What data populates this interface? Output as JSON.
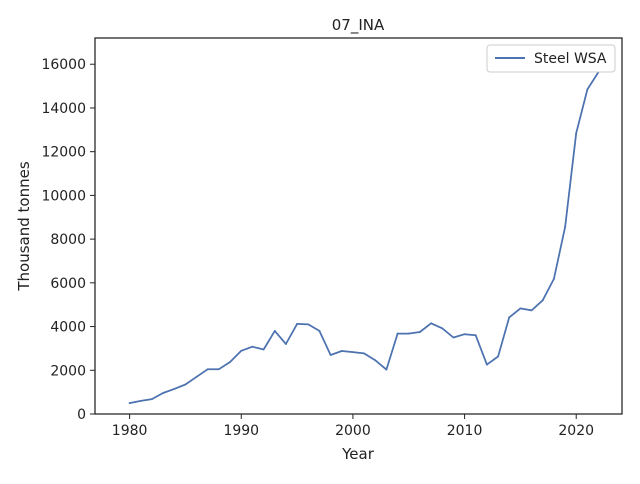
{
  "chart_data": {
    "type": "line",
    "title": "07_INA",
    "xlabel": "Year",
    "ylabel": "Thousand tonnes",
    "xlim": [
      1976.9,
      2024.1
    ],
    "ylim": [
      0,
      17200
    ],
    "xticks": [
      1980,
      1990,
      2000,
      2010,
      2020
    ],
    "yticks": [
      0,
      2000,
      4000,
      6000,
      8000,
      10000,
      12000,
      14000,
      16000
    ],
    "grid": false,
    "legend_position": "top-right",
    "series": [
      {
        "name": "Steel WSA",
        "color": "#4c72b0",
        "x": [
          1980,
          1981,
          1982,
          1983,
          1984,
          1985,
          1986,
          1987,
          1988,
          1989,
          1990,
          1991,
          1992,
          1993,
          1994,
          1995,
          1996,
          1997,
          1998,
          1999,
          2000,
          2001,
          2002,
          2003,
          2004,
          2005,
          2006,
          2007,
          2008,
          2009,
          2010,
          2011,
          2012,
          2013,
          2014,
          2015,
          2016,
          2017,
          2018,
          2019,
          2020,
          2021,
          2022
        ],
        "y": [
          500,
          600,
          680,
          960,
          1150,
          1350,
          1700,
          2050,
          2050,
          2380,
          2890,
          3080,
          2950,
          3800,
          3200,
          4120,
          4100,
          3800,
          2700,
          2880,
          2830,
          2770,
          2460,
          2030,
          3680,
          3680,
          3750,
          4150,
          3920,
          3500,
          3650,
          3600,
          2260,
          2630,
          4420,
          4830,
          4740,
          5200,
          6180,
          8550,
          12850,
          14850,
          15650
        ]
      }
    ]
  }
}
